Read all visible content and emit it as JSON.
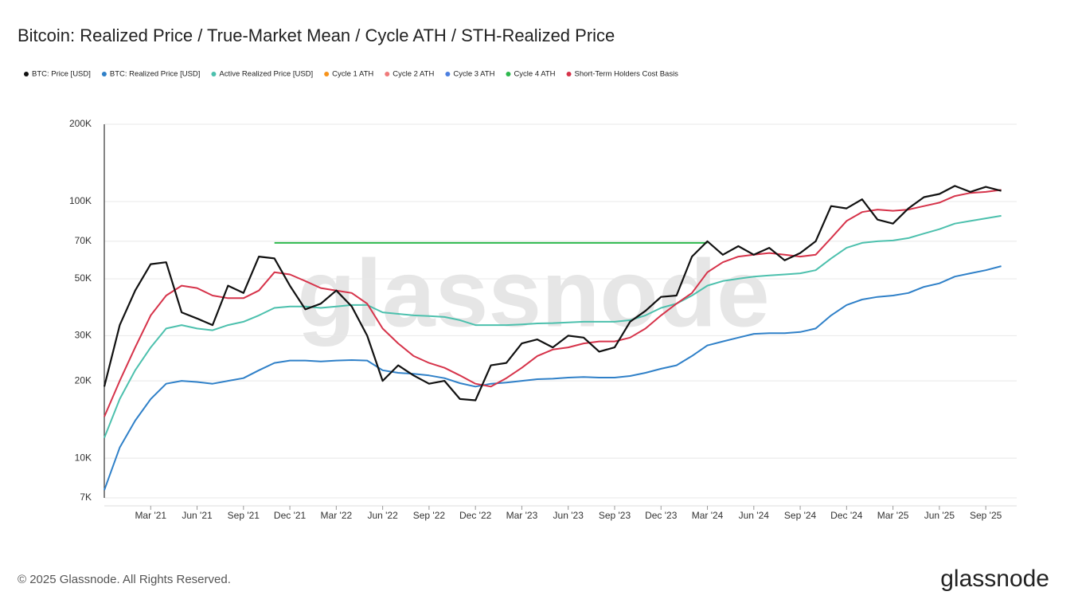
{
  "chart_data": {
    "type": "line",
    "title": "Bitcoin: Realized Price / True-Market Mean / Cycle ATH / STH-Realized Price",
    "watermark": "glassnode",
    "footer": "© 2025 Glassnode. All Rights Reserved.",
    "logo": "glassnode",
    "log_scale": true,
    "grid": true,
    "legend": "top-left",
    "x": [
      "2020-12",
      "2021-01",
      "2021-02",
      "2021-03",
      "2021-04",
      "2021-05",
      "2021-06",
      "2021-07",
      "2021-08",
      "2021-09",
      "2021-10",
      "2021-11",
      "2021-12",
      "2022-01",
      "2022-02",
      "2022-03",
      "2022-04",
      "2022-05",
      "2022-06",
      "2022-07",
      "2022-08",
      "2022-09",
      "2022-10",
      "2022-11",
      "2022-12",
      "2023-01",
      "2023-02",
      "2023-03",
      "2023-04",
      "2023-05",
      "2023-06",
      "2023-07",
      "2023-08",
      "2023-09",
      "2023-10",
      "2023-11",
      "2023-12",
      "2024-01",
      "2024-02",
      "2024-03",
      "2024-04",
      "2024-05",
      "2024-06",
      "2024-07",
      "2024-08",
      "2024-09",
      "2024-10",
      "2024-11",
      "2024-12",
      "2025-01",
      "2025-02",
      "2025-03",
      "2025-04",
      "2025-05",
      "2025-06",
      "2025-07",
      "2025-08",
      "2025-09",
      "2025-10"
    ],
    "xlim": [
      "2020-12",
      "2025-11"
    ],
    "xticks": [
      {
        "value": "2021-03",
        "label": "Mar '21"
      },
      {
        "value": "2021-06",
        "label": "Jun '21"
      },
      {
        "value": "2021-09",
        "label": "Sep '21"
      },
      {
        "value": "2021-12",
        "label": "Dec '21"
      },
      {
        "value": "2022-03",
        "label": "Mar '22"
      },
      {
        "value": "2022-06",
        "label": "Jun '22"
      },
      {
        "value": "2022-09",
        "label": "Sep '22"
      },
      {
        "value": "2022-12",
        "label": "Dec '22"
      },
      {
        "value": "2023-03",
        "label": "Mar '23"
      },
      {
        "value": "2023-06",
        "label": "Jun '23"
      },
      {
        "value": "2023-09",
        "label": "Sep '23"
      },
      {
        "value": "2023-12",
        "label": "Dec '23"
      },
      {
        "value": "2024-03",
        "label": "Mar '24"
      },
      {
        "value": "2024-06",
        "label": "Jun '24"
      },
      {
        "value": "2024-09",
        "label": "Sep '24"
      },
      {
        "value": "2024-12",
        "label": "Dec '24"
      },
      {
        "value": "2025-03",
        "label": "Mar '25"
      },
      {
        "value": "2025-06",
        "label": "Jun '25"
      },
      {
        "value": "2025-09",
        "label": "Sep '25"
      }
    ],
    "ylim": [
      7000,
      200000
    ],
    "yticks": [
      {
        "value": 7000,
        "label": "7K"
      },
      {
        "value": 10000,
        "label": "10K"
      },
      {
        "value": 20000,
        "label": "20K"
      },
      {
        "value": 30000,
        "label": "30K"
      },
      {
        "value": 50000,
        "label": "50K"
      },
      {
        "value": 70000,
        "label": "70K"
      },
      {
        "value": 100000,
        "label": "100K"
      },
      {
        "value": 200000,
        "label": "200K"
      }
    ],
    "series": [
      {
        "name": "BTC: Price [USD]",
        "color": "#111111",
        "values": [
          19000,
          33000,
          45000,
          57000,
          58000,
          37000,
          35000,
          33000,
          47000,
          44000,
          61000,
          60000,
          47000,
          38000,
          40000,
          45000,
          39000,
          30000,
          20000,
          23000,
          21000,
          19500,
          20000,
          17000,
          16800,
          23000,
          23500,
          28000,
          29000,
          27000,
          30000,
          29500,
          26000,
          27000,
          34000,
          37500,
          42500,
          43000,
          61000,
          70000,
          62000,
          67000,
          62000,
          66000,
          59000,
          63000,
          70000,
          96000,
          94000,
          102000,
          85000,
          82000,
          94000,
          104000,
          107000,
          115000,
          109000,
          114000,
          110000
        ]
      },
      {
        "name": "BTC: Realized Price [USD]",
        "color": "#2f80c8",
        "values": [
          7500,
          11000,
          14000,
          17000,
          19500,
          20000,
          19800,
          19500,
          20000,
          20500,
          22000,
          23500,
          24000,
          24000,
          23800,
          24000,
          24100,
          24000,
          22000,
          21500,
          21300,
          21000,
          20500,
          19600,
          19000,
          19500,
          19700,
          20000,
          20300,
          20400,
          20600,
          20700,
          20600,
          20600,
          20900,
          21500,
          22300,
          23000,
          25000,
          27500,
          28500,
          29500,
          30500,
          30700,
          30700,
          31000,
          32000,
          36000,
          39500,
          41500,
          42500,
          43000,
          44000,
          46500,
          48000,
          51000,
          52500,
          54000,
          56000
        ]
      },
      {
        "name": "Active Realized Price [USD]",
        "color": "#4cc0ad",
        "values": [
          12000,
          17000,
          22000,
          27000,
          32000,
          33000,
          32000,
          31500,
          33000,
          34000,
          36000,
          38500,
          39000,
          39000,
          38500,
          39000,
          39500,
          39500,
          37000,
          36500,
          36000,
          35800,
          35500,
          34500,
          33000,
          33000,
          33000,
          33200,
          33500,
          33600,
          33800,
          34000,
          34000,
          34000,
          34500,
          36000,
          38500,
          40000,
          43000,
          47000,
          49000,
          50000,
          51000,
          51500,
          52000,
          52500,
          54000,
          60000,
          66000,
          69000,
          70000,
          70500,
          72000,
          75000,
          78000,
          82000,
          84000,
          86000,
          88000
        ]
      },
      {
        "name": "Cycle 1 ATH",
        "color": "#f7931a",
        "values": [
          null,
          null,
          null,
          null,
          null,
          null,
          null,
          null,
          null,
          null,
          null,
          null,
          null,
          null,
          null,
          null,
          null,
          null,
          null,
          null,
          null,
          null,
          null,
          null,
          null,
          null,
          null,
          null,
          null,
          null,
          null,
          null,
          null,
          null,
          null,
          null,
          null,
          null,
          null,
          null,
          null,
          null,
          null,
          null,
          null,
          null,
          null,
          null,
          null,
          null,
          null,
          null,
          null,
          null,
          null,
          null,
          null,
          null,
          null
        ]
      },
      {
        "name": "Cycle 2 ATH",
        "color": "#f07a7a",
        "values": [
          null,
          null,
          null,
          null,
          null,
          null,
          null,
          null,
          null,
          null,
          null,
          null,
          null,
          null,
          null,
          null,
          null,
          null,
          null,
          null,
          null,
          null,
          null,
          null,
          null,
          null,
          null,
          null,
          null,
          null,
          null,
          null,
          null,
          null,
          null,
          null,
          null,
          null,
          null,
          null,
          null,
          null,
          null,
          null,
          null,
          null,
          null,
          null,
          null,
          null,
          null,
          null,
          null,
          null,
          null,
          null,
          null,
          null,
          null
        ]
      },
      {
        "name": "Cycle 3 ATH",
        "color": "#4c7fe0",
        "values": [
          null,
          null,
          null,
          null,
          null,
          null,
          null,
          null,
          null,
          null,
          null,
          null,
          null,
          null,
          null,
          null,
          null,
          null,
          null,
          null,
          null,
          null,
          null,
          null,
          null,
          null,
          null,
          null,
          null,
          null,
          null,
          null,
          null,
          null,
          null,
          null,
          null,
          null,
          null,
          null,
          null,
          null,
          null,
          null,
          null,
          null,
          null,
          null,
          null,
          null,
          null,
          null,
          null,
          null,
          null,
          null,
          null,
          null,
          null
        ]
      },
      {
        "name": "Cycle 4 ATH",
        "color": "#2db84d",
        "values": [
          null,
          null,
          null,
          null,
          null,
          null,
          null,
          null,
          null,
          null,
          null,
          69000,
          69000,
          69000,
          69000,
          69000,
          69000,
          69000,
          69000,
          69000,
          69000,
          69000,
          69000,
          69000,
          69000,
          69000,
          69000,
          69000,
          69000,
          69000,
          69000,
          69000,
          69000,
          69000,
          69000,
          69000,
          69000,
          69000,
          69000,
          69000,
          null,
          null,
          null,
          null,
          null,
          null,
          null,
          null,
          null,
          null,
          null,
          null,
          null,
          null,
          null,
          null,
          null,
          null,
          null
        ]
      },
      {
        "name": "Short-Term Holders Cost Basis",
        "color": "#d6334a",
        "values": [
          14500,
          20000,
          27000,
          36000,
          43000,
          47000,
          46000,
          43000,
          42000,
          42000,
          45000,
          53000,
          52000,
          49000,
          46000,
          45000,
          44000,
          40000,
          32000,
          28000,
          25000,
          23500,
          22500,
          21000,
          19500,
          19000,
          20500,
          22500,
          25000,
          26500,
          27000,
          28000,
          28500,
          28500,
          29500,
          32000,
          36000,
          40000,
          44000,
          53000,
          58000,
          61000,
          62000,
          63000,
          62000,
          61000,
          62000,
          72000,
          84000,
          91000,
          93000,
          92000,
          93000,
          96000,
          99000,
          105000,
          108000,
          109000,
          111000
        ]
      }
    ]
  }
}
